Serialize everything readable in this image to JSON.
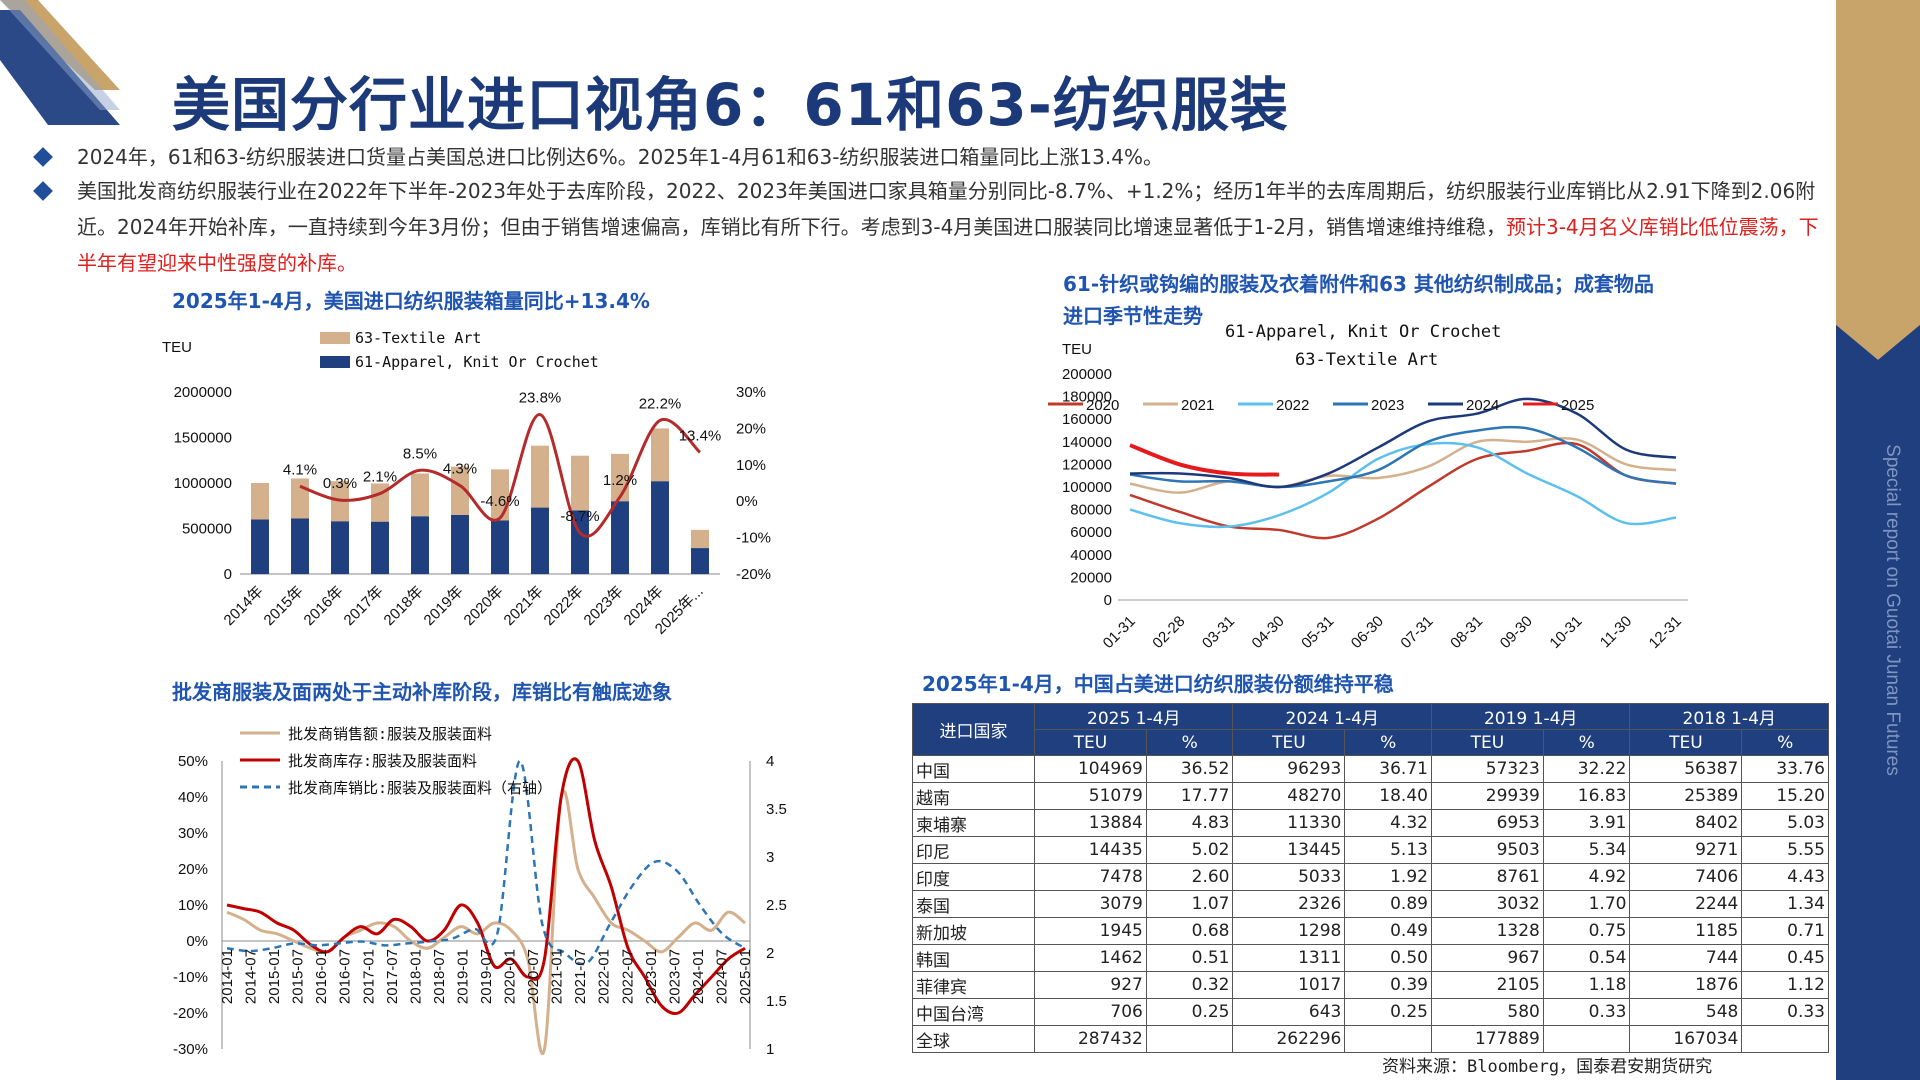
{
  "title": "美国分行业进口视角6：61和63-纺织服装",
  "side_text": "Special report on Guotai Junan Futures",
  "bullets": [
    {
      "text": "2024年，61和63-纺织服装进口货量占美国总进口比例达6%。2025年1-4月61和63-纺织服装进口箱量同比上涨13.4%。"
    },
    {
      "text_a": "美国批发商纺织服装行业在2022年下半年-2023年处于去库阶段，2022、2023年美国进口家具箱量分别同比-8.7%、+1.2%；经历1年半的去库周期后，纺织服装行业库销比从2.91下降到2.06附近。2024年开始补库，一直持续到今年3月份；但由于销售增速偏高，库销比有所下行。考虑到3-4月美国进口服装同比增速显著低于1-2月，销售增速维持维稳，",
      "text_red": "预计3-4月名义库销比低位震荡，下半年有望迎来中性强度的补库。"
    }
  ],
  "colors": {
    "navy": "#1f3f7f",
    "gold": "#c9a46a",
    "accent_red": "#e0201e",
    "title_blue": "#1f55b0"
  },
  "chart_data": [
    {
      "type": "bar",
      "title": "2025年1-4月，美国进口纺织服装箱量同比+13.4%",
      "unit_label": "TEU",
      "categories": [
        "2014年",
        "2015年",
        "2016年",
        "2017年",
        "2018年",
        "2019年",
        "2020年",
        "2021年",
        "2022年",
        "2023年",
        "2024年",
        "2025年..."
      ],
      "series": [
        {
          "name": "63-Textile Art",
          "color": "#d4b08c",
          "values": [
            400000,
            440000,
            440000,
            420000,
            470000,
            530000,
            560000,
            680000,
            600000,
            520000,
            580000,
            200000
          ]
        },
        {
          "name": "61-Apparel, Knit Or Crochet",
          "color": "#1f3f7f",
          "values": [
            600000,
            610000,
            580000,
            575000,
            635000,
            650000,
            590000,
            730000,
            700000,
            800000,
            1020000,
            285000
          ]
        }
      ],
      "line": {
        "name": "同比",
        "axis": "right",
        "values": [
          null,
          4.1,
          0.3,
          2.1,
          8.5,
          4.3,
          -4.6,
          23.8,
          -8.7,
          1.2,
          22.2,
          13.4
        ],
        "labels": [
          "",
          "4.1%",
          "0.3%",
          "2.1%",
          "8.5%",
          "4.3%",
          "-4.6%",
          "23.8%",
          "-8.7%",
          "1.2%",
          "22.2%",
          "13.4%"
        ]
      },
      "ylim": [
        0,
        2000000
      ],
      "yticks": [
        "0",
        "500000",
        "1000000",
        "1500000",
        "2000000"
      ],
      "y2lim": [
        -20,
        30
      ],
      "y2ticks": [
        "-20%",
        "-10%",
        "0%",
        "10%",
        "20%",
        "30%"
      ]
    },
    {
      "type": "line",
      "title_line1": "61-针织或钩编的服装及衣着附件和63  其他纺织制成品；成套物品",
      "title_line2": "进口季节性走势",
      "subtitle_line1": "61-Apparel, Knit Or Crochet",
      "subtitle_line2": "63-Textile Art",
      "unit_label": "TEU",
      "x": [
        "01-31",
        "02-28",
        "03-31",
        "04-30",
        "05-31",
        "06-30",
        "07-31",
        "08-31",
        "09-30",
        "10-31",
        "11-30",
        "12-31"
      ],
      "ylim": [
        0,
        200000
      ],
      "yticks": [
        "0",
        "20000",
        "40000",
        "60000",
        "80000",
        "100000",
        "120000",
        "140000",
        "160000",
        "180000",
        "200000"
      ],
      "series": [
        {
          "name": "2020",
          "color": "#c0392b",
          "values": [
            93000,
            78000,
            65000,
            62000,
            55000,
            72000,
            100000,
            125000,
            132000,
            138000,
            110000,
            103000
          ]
        },
        {
          "name": "2021",
          "color": "#d4b08c",
          "values": [
            103000,
            95000,
            105000,
            100000,
            110000,
            108000,
            118000,
            140000,
            140000,
            142000,
            120000,
            115000
          ]
        },
        {
          "name": "2022",
          "color": "#5bc0eb",
          "values": [
            80000,
            68000,
            65000,
            75000,
            95000,
            125000,
            138000,
            135000,
            112000,
            92000,
            68000,
            73000
          ]
        },
        {
          "name": "2023",
          "color": "#2e75b6",
          "values": [
            111000,
            105000,
            105000,
            100000,
            105000,
            115000,
            140000,
            150000,
            152000,
            135000,
            110000,
            103000
          ]
        },
        {
          "name": "2024",
          "color": "#1c3a7a",
          "values": [
            112000,
            112000,
            108000,
            100000,
            112000,
            135000,
            158000,
            165000,
            178000,
            165000,
            133000,
            126000
          ]
        },
        {
          "name": "2025",
          "color": "#e41a1c",
          "values": [
            137000,
            120000,
            112000,
            111000,
            null,
            null,
            null,
            null,
            null,
            null,
            null,
            null
          ]
        }
      ]
    },
    {
      "type": "line",
      "title": "批发商服装及面两处于主动补库阶段，库销比有触底迹象",
      "x_labels": [
        "2014-01",
        "2014-07",
        "2015-01",
        "2015-07",
        "2016-01",
        "2016-07",
        "2017-01",
        "2017-07",
        "2018-01",
        "2018-07",
        "2019-01",
        "2019-07",
        "2020-01",
        "2020-07",
        "2021-01",
        "2021-07",
        "2022-01",
        "2022-07",
        "2023-01",
        "2023-07",
        "2024-01",
        "2024-07",
        "2025-01"
      ],
      "ylim": [
        -30,
        50
      ],
      "yticks": [
        "-30%",
        "-20%",
        "-10%",
        "0%",
        "10%",
        "20%",
        "30%",
        "40%",
        "50%"
      ],
      "y2lim": [
        1,
        4
      ],
      "y2ticks": [
        "1",
        "1.5",
        "2",
        "2.5",
        "3",
        "3.5",
        "4"
      ],
      "series": [
        {
          "name": "批发商销售额:服装及服装面料",
          "color": "#d4b08c",
          "style": "solid",
          "axis": "left",
          "values": [
            8,
            6,
            3,
            2,
            0,
            -2,
            -3,
            1,
            3,
            5,
            4,
            0,
            -2,
            1,
            4,
            2,
            5,
            3,
            -5,
            -30,
            40,
            20,
            12,
            5,
            3,
            0,
            -3,
            1,
            5,
            3,
            8,
            5
          ]
        },
        {
          "name": "批发商库存:服装及服装面料",
          "color": "#c00000",
          "style": "solid",
          "axis": "left",
          "values": [
            10,
            9,
            8,
            5,
            3,
            -1,
            -3,
            1,
            4,
            2,
            6,
            4,
            0,
            3,
            10,
            5,
            -7,
            -5,
            -10,
            -5,
            40,
            50,
            28,
            15,
            -2,
            -10,
            -18,
            -20,
            -15,
            -10,
            -5,
            -2
          ]
        },
        {
          "name": "批发商库销比:服装及服装面料（右轴）",
          "color": "#2e75b6",
          "style": "dashed",
          "axis": "right",
          "values": [
            2.05,
            2.02,
            2.05,
            2.1,
            2.08,
            2.1,
            2.12,
            2.08,
            2.1,
            2.12,
            2.15,
            2.25,
            2.2,
            4.0,
            2.3,
            2.0,
            1.9,
            2.3,
            2.7,
            2.95,
            2.85,
            2.5,
            2.2,
            2.05
          ]
        }
      ]
    }
  ],
  "table": {
    "title": "2025年1-4月，中国占美进口纺织服装份额维持平稳",
    "corner": "进口国家",
    "periods": [
      "2025 1-4月",
      "2024 1-4月",
      "2019 1-4月",
      "2018 1-4月"
    ],
    "sub": [
      "TEU",
      "%"
    ],
    "rows": [
      [
        "中国",
        "104969",
        "36.52",
        "96293",
        "36.71",
        "57323",
        "32.22",
        "56387",
        "33.76"
      ],
      [
        "越南",
        "51079",
        "17.77",
        "48270",
        "18.40",
        "29939",
        "16.83",
        "25389",
        "15.20"
      ],
      [
        "柬埔寨",
        "13884",
        "4.83",
        "11330",
        "4.32",
        "6953",
        "3.91",
        "8402",
        "5.03"
      ],
      [
        "印尼",
        "14435",
        "5.02",
        "13445",
        "5.13",
        "9503",
        "5.34",
        "9271",
        "5.55"
      ],
      [
        "印度",
        "7478",
        "2.60",
        "5033",
        "1.92",
        "8761",
        "4.92",
        "7406",
        "4.43"
      ],
      [
        "泰国",
        "3079",
        "1.07",
        "2326",
        "0.89",
        "3032",
        "1.70",
        "2244",
        "1.34"
      ],
      [
        "新加坡",
        "1945",
        "0.68",
        "1298",
        "0.49",
        "1328",
        "0.75",
        "1185",
        "0.71"
      ],
      [
        "韩国",
        "1462",
        "0.51",
        "1311",
        "0.50",
        "967",
        "0.54",
        "744",
        "0.45"
      ],
      [
        "菲律宾",
        "927",
        "0.32",
        "1017",
        "0.39",
        "2105",
        "1.18",
        "1876",
        "1.12"
      ],
      [
        "中国台湾",
        "706",
        "0.25",
        "643",
        "0.25",
        "580",
        "0.33",
        "548",
        "0.33"
      ],
      [
        "全球",
        "287432",
        "",
        "262296",
        "",
        "177889",
        "",
        "167034",
        ""
      ]
    ]
  },
  "source": "资料来源：Bloomberg，国泰君安期货研究"
}
